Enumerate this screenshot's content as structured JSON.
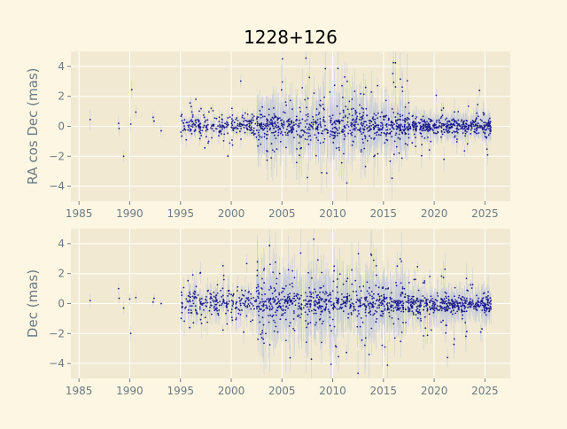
{
  "figure": {
    "title": "1228+126",
    "background": "#fdf6e3",
    "axes_background": "#f1e9d2",
    "grid_color": "#ffffff",
    "tick_color": "#6b7b83",
    "point_color": "#1a1a8c",
    "errorbar_color": "#c4cbd8"
  },
  "chart_data": [
    {
      "type": "scatter",
      "title": "1228+126",
      "xlabel": "",
      "ylabel": "RA cos Dec (mas)",
      "xlim": [
        1984.2,
        2027.5
      ],
      "ylim": [
        -5,
        5
      ],
      "xticks": [
        1985,
        1990,
        1995,
        2000,
        2005,
        2010,
        2015,
        2020,
        2025
      ],
      "yticks": [
        -4,
        -2,
        0,
        2,
        4
      ],
      "grid": true,
      "error_bars": true,
      "sparse_points": [
        {
          "x": 1986.1,
          "y": 0.45,
          "err": 0.7
        },
        {
          "x": 1988.9,
          "y": 0.2,
          "err": 0.5
        },
        {
          "x": 1988.95,
          "y": -0.15,
          "err": 0.5
        },
        {
          "x": 1989.4,
          "y": -2.0,
          "err": 0.4
        },
        {
          "x": 1990.1,
          "y": 0.15,
          "err": 0.5
        },
        {
          "x": 1990.2,
          "y": 2.45,
          "err": 0.6
        },
        {
          "x": 1990.6,
          "y": 0.95,
          "err": 0.4
        },
        {
          "x": 1992.3,
          "y": 0.6,
          "err": 0.4
        },
        {
          "x": 1992.4,
          "y": 0.35,
          "err": 0.4
        },
        {
          "x": 1993.1,
          "y": -0.3,
          "err": 0.4
        }
      ],
      "dense_segments": [
        {
          "x0": 1995.0,
          "x1": 2002.5,
          "n": 240,
          "mean": 0.05,
          "scatter": 0.35,
          "outlier_rate": 0.12,
          "outlier_scatter": 1.0,
          "err": 0.4
        },
        {
          "x0": 2002.5,
          "x1": 2014.5,
          "n": 560,
          "mean": 0.0,
          "scatter": 0.4,
          "outlier_rate": 0.3,
          "outlier_scatter": 1.7,
          "err": 1.4
        },
        {
          "x0": 2014.5,
          "x1": 2017.5,
          "n": 160,
          "mean": 0.0,
          "scatter": 0.35,
          "outlier_rate": 0.25,
          "outlier_scatter": 1.6,
          "err": 1.2
        },
        {
          "x0": 2017.5,
          "x1": 2025.6,
          "n": 420,
          "mean": 0.0,
          "scatter": 0.25,
          "outlier_rate": 0.12,
          "outlier_scatter": 1.1,
          "err": 0.6
        }
      ],
      "seed": 17
    },
    {
      "type": "scatter",
      "title": "",
      "xlabel": "",
      "ylabel": "Dec (mas)",
      "xlim": [
        1984.2,
        2027.5
      ],
      "ylim": [
        -5,
        5
      ],
      "xticks": [
        1985,
        1990,
        1995,
        2000,
        2005,
        2010,
        2015,
        2020,
        2025
      ],
      "yticks": [
        -4,
        -2,
        0,
        2,
        4
      ],
      "grid": true,
      "error_bars": true,
      "sparse_points": [
        {
          "x": 1986.1,
          "y": 0.2,
          "err": 0.5
        },
        {
          "x": 1988.9,
          "y": 1.0,
          "err": 0.4
        },
        {
          "x": 1988.95,
          "y": 0.35,
          "err": 0.4
        },
        {
          "x": 1989.4,
          "y": -0.3,
          "err": 0.4
        },
        {
          "x": 1990.0,
          "y": 0.3,
          "err": 0.4
        },
        {
          "x": 1990.1,
          "y": -2.0,
          "err": 0.5
        },
        {
          "x": 1990.6,
          "y": 0.4,
          "err": 0.4
        },
        {
          "x": 1992.3,
          "y": 0.1,
          "err": 0.3
        },
        {
          "x": 1992.4,
          "y": 0.35,
          "err": 0.3
        },
        {
          "x": 1993.1,
          "y": 0.0,
          "err": 0.3
        }
      ],
      "dense_segments": [
        {
          "x0": 1995.0,
          "x1": 2002.5,
          "n": 240,
          "mean": 0.1,
          "scatter": 0.45,
          "outlier_rate": 0.18,
          "outlier_scatter": 1.2,
          "err": 0.7
        },
        {
          "x0": 2002.5,
          "x1": 2014.5,
          "n": 560,
          "mean": 0.0,
          "scatter": 0.45,
          "outlier_rate": 0.32,
          "outlier_scatter": 1.8,
          "err": 1.6
        },
        {
          "x0": 2014.5,
          "x1": 2017.5,
          "n": 160,
          "mean": 0.0,
          "scatter": 0.35,
          "outlier_rate": 0.25,
          "outlier_scatter": 1.6,
          "err": 1.3
        },
        {
          "x0": 2017.5,
          "x1": 2025.6,
          "n": 420,
          "mean": -0.05,
          "scatter": 0.3,
          "outlier_rate": 0.15,
          "outlier_scatter": 1.2,
          "err": 0.8
        }
      ],
      "seed": 41
    }
  ]
}
